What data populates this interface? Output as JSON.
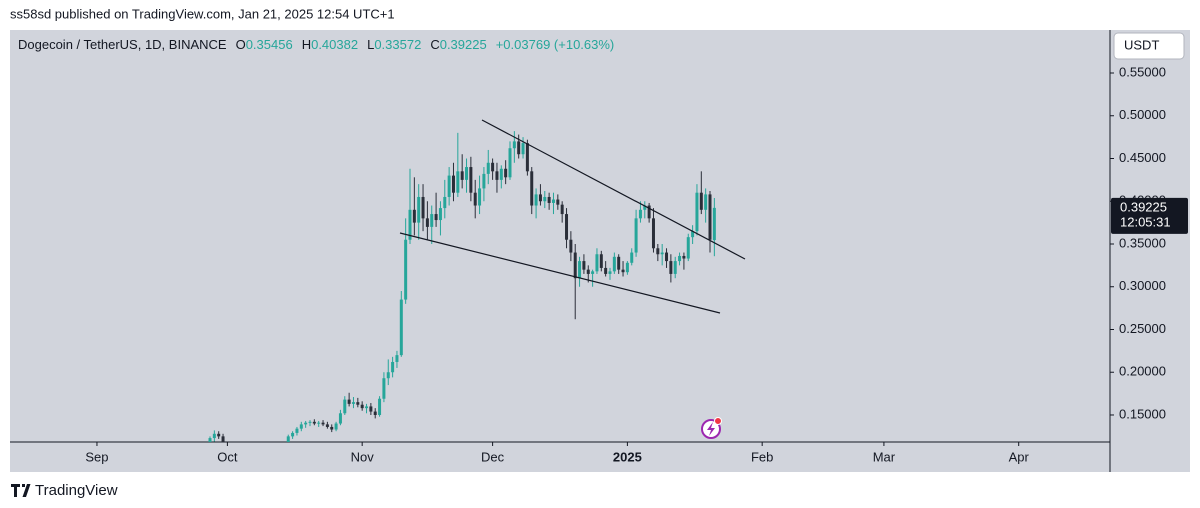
{
  "header": {
    "published": "ss58sd published on TradingView.com, Jan 21, 2025 12:54 UTC+1"
  },
  "chart_data": {
    "type": "candlestick",
    "title": "Dogecoin / TetherUS, 1D, BINANCE",
    "ohlc_labels": [
      "O",
      "H",
      "L",
      "C"
    ],
    "change": "+0.03769 (+10.63%)",
    "currency": "USDT",
    "countdown": "12:05:31",
    "up_color": "#26a69a",
    "down_color": "#2a2e39",
    "x": [
      46,
      47,
      48,
      49,
      64,
      65,
      66,
      67,
      68,
      69,
      70,
      71,
      72,
      73,
      74,
      75,
      76,
      77,
      78,
      79,
      80,
      81,
      82,
      83,
      84,
      85,
      86,
      87,
      88,
      89,
      90,
      91,
      92,
      93,
      94,
      95,
      96,
      97,
      98,
      99,
      100,
      101,
      102,
      103,
      104,
      105,
      106,
      107,
      108,
      109,
      110,
      111,
      112,
      113,
      114,
      115,
      116,
      117,
      118,
      119,
      120,
      121,
      122,
      123,
      124,
      125,
      126,
      127,
      128,
      129,
      130,
      131,
      132,
      133,
      134,
      135,
      136,
      137,
      138,
      139,
      140,
      141,
      142,
      143,
      144,
      145,
      146,
      147,
      148,
      149,
      150,
      151,
      152,
      153,
      154,
      155,
      156,
      157,
      158,
      159,
      160,
      161,
      162
    ],
    "open": [
      0.118,
      0.123,
      0.128,
      0.125,
      0.118,
      0.125,
      0.129,
      0.134,
      0.139,
      0.141,
      0.142,
      0.14,
      0.141,
      0.139,
      0.136,
      0.133,
      0.14,
      0.152,
      0.168,
      0.163,
      0.165,
      0.162,
      0.158,
      0.16,
      0.154,
      0.15,
      0.169,
      0.193,
      0.2,
      0.212,
      0.22,
      0.285,
      0.355,
      0.39,
      0.375,
      0.405,
      0.38,
      0.37,
      0.385,
      0.378,
      0.392,
      0.405,
      0.43,
      0.41,
      0.435,
      0.425,
      0.44,
      0.41,
      0.395,
      0.415,
      0.432,
      0.445,
      0.435,
      0.425,
      0.438,
      0.428,
      0.462,
      0.47,
      0.455,
      0.468,
      0.435,
      0.395,
      0.408,
      0.4,
      0.405,
      0.398,
      0.402,
      0.396,
      0.385,
      0.355,
      0.34,
      0.31,
      0.33,
      0.32,
      0.315,
      0.318,
      0.338,
      0.322,
      0.315,
      0.318,
      0.335,
      0.32,
      0.317,
      0.328,
      0.34,
      0.38,
      0.39,
      0.395,
      0.38,
      0.345,
      0.338,
      0.34,
      0.33,
      0.315,
      0.33,
      0.336,
      0.333,
      0.358,
      0.365,
      0.41,
      0.39,
      0.408,
      0.35456
    ],
    "high": [
      0.125,
      0.132,
      0.131,
      0.128,
      0.127,
      0.131,
      0.136,
      0.142,
      0.143,
      0.144,
      0.145,
      0.143,
      0.144,
      0.142,
      0.139,
      0.142,
      0.156,
      0.172,
      0.176,
      0.171,
      0.17,
      0.166,
      0.163,
      0.164,
      0.158,
      0.172,
      0.2,
      0.215,
      0.218,
      0.225,
      0.295,
      0.38,
      0.438,
      0.428,
      0.42,
      0.42,
      0.4,
      0.395,
      0.41,
      0.4,
      0.425,
      0.44,
      0.445,
      0.48,
      0.455,
      0.45,
      0.452,
      0.425,
      0.43,
      0.44,
      0.46,
      0.45,
      0.445,
      0.442,
      0.448,
      0.47,
      0.482,
      0.478,
      0.475,
      0.472,
      0.44,
      0.415,
      0.42,
      0.412,
      0.41,
      0.41,
      0.408,
      0.4,
      0.392,
      0.365,
      0.35,
      0.335,
      0.338,
      0.325,
      0.32,
      0.345,
      0.342,
      0.33,
      0.322,
      0.34,
      0.338,
      0.33,
      0.33,
      0.345,
      0.39,
      0.4,
      0.4,
      0.398,
      0.392,
      0.35,
      0.35,
      0.345,
      0.338,
      0.335,
      0.34,
      0.34,
      0.362,
      0.372,
      0.42,
      0.435,
      0.415,
      0.412,
      0.40382
    ],
    "low": [
      0.112,
      0.119,
      0.122,
      0.115,
      0.115,
      0.122,
      0.126,
      0.131,
      0.135,
      0.137,
      0.138,
      0.136,
      0.137,
      0.134,
      0.13,
      0.131,
      0.138,
      0.15,
      0.16,
      0.158,
      0.159,
      0.155,
      0.152,
      0.15,
      0.146,
      0.148,
      0.165,
      0.185,
      0.194,
      0.205,
      0.218,
      0.28,
      0.35,
      0.36,
      0.355,
      0.365,
      0.355,
      0.35,
      0.37,
      0.36,
      0.38,
      0.395,
      0.4,
      0.405,
      0.415,
      0.41,
      0.4,
      0.38,
      0.385,
      0.4,
      0.42,
      0.425,
      0.41,
      0.415,
      0.42,
      0.425,
      0.445,
      0.45,
      0.45,
      0.43,
      0.385,
      0.38,
      0.395,
      0.392,
      0.39,
      0.385,
      0.39,
      0.375,
      0.345,
      0.33,
      0.262,
      0.3,
      0.315,
      0.305,
      0.3,
      0.315,
      0.318,
      0.312,
      0.308,
      0.315,
      0.315,
      0.312,
      0.314,
      0.325,
      0.335,
      0.375,
      0.38,
      0.375,
      0.34,
      0.33,
      0.325,
      0.322,
      0.305,
      0.31,
      0.325,
      0.32,
      0.33,
      0.35,
      0.36,
      0.385,
      0.375,
      0.34,
      0.33572
    ],
    "close": [
      0.123,
      0.128,
      0.125,
      0.117,
      0.125,
      0.129,
      0.134,
      0.139,
      0.141,
      0.142,
      0.14,
      0.141,
      0.139,
      0.136,
      0.133,
      0.14,
      0.152,
      0.168,
      0.163,
      0.165,
      0.162,
      0.158,
      0.16,
      0.154,
      0.15,
      0.169,
      0.193,
      0.2,
      0.212,
      0.22,
      0.285,
      0.355,
      0.39,
      0.375,
      0.405,
      0.38,
      0.37,
      0.385,
      0.378,
      0.392,
      0.405,
      0.43,
      0.41,
      0.435,
      0.425,
      0.44,
      0.41,
      0.395,
      0.415,
      0.432,
      0.445,
      0.435,
      0.425,
      0.438,
      0.428,
      0.462,
      0.47,
      0.455,
      0.468,
      0.435,
      0.395,
      0.408,
      0.4,
      0.405,
      0.398,
      0.402,
      0.396,
      0.385,
      0.355,
      0.34,
      0.31,
      0.33,
      0.32,
      0.315,
      0.318,
      0.338,
      0.322,
      0.315,
      0.318,
      0.335,
      0.32,
      0.317,
      0.328,
      0.34,
      0.38,
      0.39,
      0.395,
      0.38,
      0.345,
      0.338,
      0.34,
      0.33,
      0.315,
      0.33,
      0.336,
      0.333,
      0.358,
      0.365,
      0.41,
      0.39,
      0.408,
      0.355,
      0.39225
    ],
    "xlim": [
      0,
      253
    ],
    "xticks": [
      {
        "value": 20,
        "label": "Sep"
      },
      {
        "value": 50,
        "label": "Oct"
      },
      {
        "value": 81,
        "label": "Nov"
      },
      {
        "value": 111,
        "label": "Dec"
      },
      {
        "value": 142,
        "label": "2025"
      },
      {
        "value": 173,
        "label": "Feb"
      },
      {
        "value": 201,
        "label": "Mar"
      },
      {
        "value": 232,
        "label": "Apr"
      }
    ],
    "ylim": [
      0.1184,
      0.6003
    ],
    "yticks": [
      {
        "value": 0.15,
        "label": "0.15000"
      },
      {
        "value": 0.2,
        "label": "0.20000"
      },
      {
        "value": 0.25,
        "label": "0.25000"
      },
      {
        "value": 0.3,
        "label": "0.30000"
      },
      {
        "value": 0.35,
        "label": "0.35000"
      },
      {
        "value": 0.4,
        "label": "0.40000"
      },
      {
        "value": 0.45,
        "label": "0.45000"
      },
      {
        "value": 0.5,
        "label": "0.50000"
      },
      {
        "value": 0.55,
        "label": "0.55000"
      }
    ]
  },
  "footer": {
    "brand": "TradingView"
  }
}
